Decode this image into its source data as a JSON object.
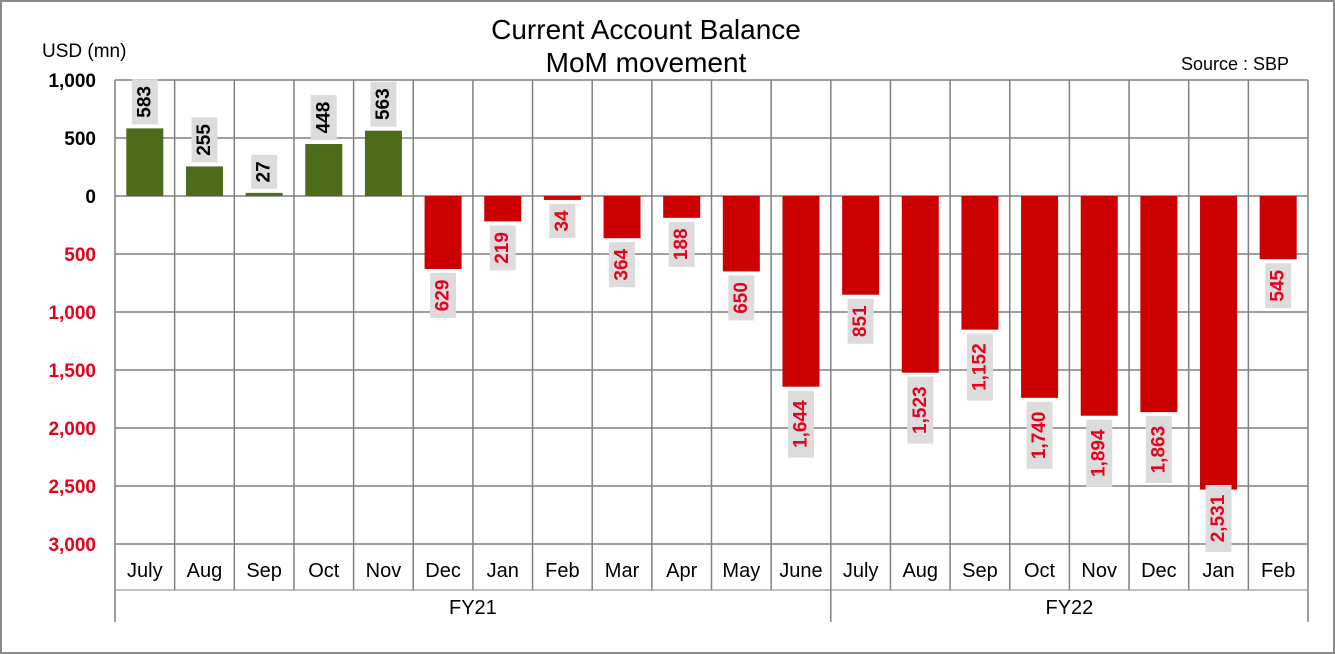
{
  "chart_data": {
    "type": "bar",
    "title": [
      "Current Account Balance",
      "MoM movement"
    ],
    "unit_label": "USD (mn)",
    "source": "Source : SBP",
    "ylim": [
      -3000,
      1000
    ],
    "y_ticks": [
      1000,
      500,
      0,
      -500,
      -1000,
      -1500,
      -2000,
      -2500,
      -3000
    ],
    "y_tick_labels": [
      "1,000",
      "500",
      "0",
      "500",
      "1,000",
      "1,500",
      "2,000",
      "2,500",
      "3,000"
    ],
    "categories": [
      "July",
      "Aug",
      "Sep",
      "Oct",
      "Nov",
      "Dec",
      "Jan",
      "Feb",
      "Mar",
      "Apr",
      "May",
      "June",
      "July",
      "Aug",
      "Sep",
      "Oct",
      "Nov",
      "Dec",
      "Jan",
      "Feb"
    ],
    "values": [
      583,
      255,
      27,
      448,
      563,
      -629,
      -219,
      -34,
      -364,
      -188,
      -650,
      -1644,
      -851,
      -1523,
      -1152,
      -1740,
      -1894,
      -1863,
      -2531,
      -545
    ],
    "value_labels": [
      "583",
      "255",
      "27",
      "448",
      "563",
      "629",
      "219",
      "34",
      "364",
      "188",
      "650",
      "1,644",
      "851",
      "1,523",
      "1,152",
      "1,740",
      "1,894",
      "1,863",
      "2,531",
      "545"
    ],
    "groups": [
      {
        "label": "FY21",
        "count": 12
      },
      {
        "label": "FY22",
        "count": 8
      }
    ],
    "colors": {
      "positive": "#4d6b1a",
      "negative": "#cc0000",
      "negative_label": "#e8001c",
      "grid": "#7f8080",
      "label_bg": "#dcdcdc"
    },
    "grid": true,
    "legend": "none"
  }
}
